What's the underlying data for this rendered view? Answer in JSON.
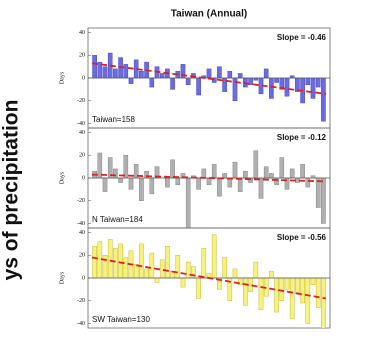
{
  "side_label": "ys of precipitation",
  "chart_data": [
    {
      "type": "bar",
      "title": "Taiwan (Annual)",
      "y_label": "Days",
      "annotation": "Slope = -0.46",
      "label": "Taiwan=158",
      "color": "#6b6be6",
      "stroke": "#3c3ca8",
      "values": [
        20,
        14,
        10,
        22,
        8,
        18,
        12,
        -5,
        16,
        6,
        14,
        -8,
        10,
        4,
        8,
        -10,
        6,
        12,
        -6,
        4,
        -15,
        2,
        8,
        -4,
        10,
        -12,
        6,
        -20,
        4,
        -8,
        -6,
        -2,
        -14,
        8,
        -18,
        -4,
        -10,
        -16,
        2,
        -12,
        -22,
        -6,
        -18,
        -8,
        -38
      ],
      "trend": [
        13,
        -14
      ],
      "trend_color": "#e02020",
      "ylim": [
        -44,
        44
      ],
      "yticks": [
        -40,
        -20,
        0,
        20,
        40
      ]
    },
    {
      "type": "bar",
      "y_label": "Days",
      "annotation": "Slope = -0.12",
      "label": "N Taiwan=184",
      "color": "#b0b0b0",
      "stroke": "#777777",
      "values": [
        6,
        22,
        -12,
        18,
        8,
        -4,
        20,
        -10,
        12,
        -20,
        6,
        -14,
        10,
        0,
        -8,
        16,
        -6,
        4,
        -44,
        2,
        -10,
        8,
        -6,
        12,
        -16,
        4,
        -8,
        14,
        -12,
        6,
        -4,
        24,
        -18,
        10,
        4,
        -6,
        18,
        -10,
        8,
        -4,
        12,
        -8,
        2,
        -26,
        -40
      ],
      "trend": [
        3,
        -3
      ],
      "trend_color": "#e02020",
      "ylim": [
        -44,
        44
      ],
      "yticks": [
        -40,
        -20,
        0,
        20,
        40
      ]
    },
    {
      "type": "bar",
      "y_label": "Days",
      "annotation": "Slope = -0.56",
      "label": "SW Taiwan=130",
      "color": "#f7f27c",
      "stroke": "#b8a820",
      "values": [
        28,
        32,
        20,
        34,
        26,
        30,
        18,
        24,
        12,
        30,
        8,
        22,
        -4,
        16,
        28,
        6,
        20,
        -8,
        14,
        10,
        -18,
        26,
        4,
        38,
        -10,
        18,
        -20,
        8,
        -6,
        -24,
        -12,
        14,
        -28,
        -16,
        6,
        -30,
        -20,
        -10,
        -36,
        -14,
        -22,
        -40,
        -6,
        -26,
        -48
      ],
      "trend": [
        18,
        -18
      ],
      "trend_color": "#e02020",
      "ylim": [
        -44,
        44
      ],
      "yticks": [
        -40,
        -20,
        0,
        20,
        40
      ]
    }
  ]
}
